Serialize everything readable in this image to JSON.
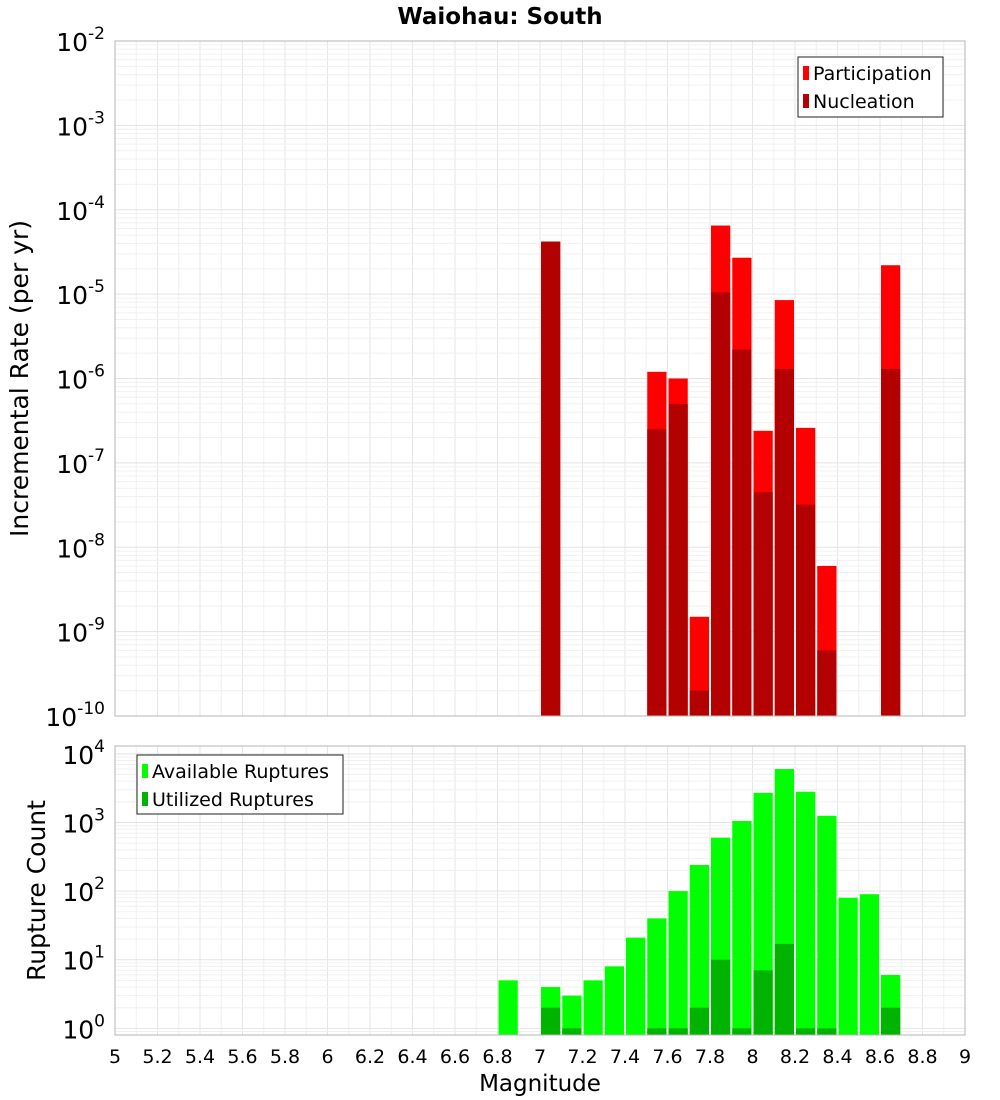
{
  "chart_data": [
    {
      "type": "bar",
      "title": "Waiohau: South",
      "xlabel": "",
      "ylabel": "Incremental Rate (per yr)",
      "yscale": "log",
      "xlim": [
        5,
        9
      ],
      "ylim": [
        1e-10,
        0.01
      ],
      "grid": true,
      "legend_position": "top-right",
      "bin_width": 0.1,
      "x": [
        7.05,
        7.55,
        7.65,
        7.75,
        7.85,
        7.95,
        8.05,
        8.15,
        8.25,
        8.35,
        8.65
      ],
      "series": [
        {
          "name": "Participation",
          "color": "#ff0000",
          "values": [
            4.2e-05,
            1.2e-06,
            1e-06,
            1.5e-09,
            6.5e-05,
            2.7e-05,
            2.4e-07,
            8.5e-06,
            2.6e-07,
            6e-09,
            2.2e-05
          ]
        },
        {
          "name": "Nucleation",
          "color": "#b30000",
          "values": [
            4.2e-05,
            2.5e-07,
            5e-07,
            2e-10,
            1.05e-05,
            2.2e-06,
            4.5e-08,
            1.3e-06,
            3.2e-08,
            6e-10,
            1.3e-06
          ]
        }
      ],
      "y_ticks": [
        {
          "base": "10",
          "exp": "-10",
          "value": 1e-10
        },
        {
          "base": "10",
          "exp": "-9",
          "value": 1e-09
        },
        {
          "base": "10",
          "exp": "-8",
          "value": 1e-08
        },
        {
          "base": "10",
          "exp": "-7",
          "value": 1e-07
        },
        {
          "base": "10",
          "exp": "-6",
          "value": 1e-06
        },
        {
          "base": "10",
          "exp": "-5",
          "value": 1e-05
        },
        {
          "base": "10",
          "exp": "-4",
          "value": 0.0001
        },
        {
          "base": "10",
          "exp": "-3",
          "value": 0.001
        },
        {
          "base": "10",
          "exp": "-2",
          "value": 0.01
        }
      ]
    },
    {
      "type": "bar",
      "title": "",
      "xlabel": "Magnitude",
      "ylabel": "Rupture Count",
      "yscale": "log",
      "xlim": [
        5,
        9
      ],
      "ylim": [
        0.8,
        13000
      ],
      "grid": true,
      "legend_position": "top-left",
      "bin_width": 0.1,
      "x": [
        6.85,
        7.05,
        7.15,
        7.25,
        7.35,
        7.45,
        7.55,
        7.65,
        7.75,
        7.85,
        7.95,
        8.05,
        8.15,
        8.25,
        8.35,
        8.45,
        8.55,
        8.65
      ],
      "series": [
        {
          "name": "Available Ruptures",
          "color": "#00ff00",
          "values": [
            5,
            4,
            3,
            5,
            8,
            21,
            40,
            100,
            240,
            600,
            1050,
            2700,
            6000,
            2800,
            1250,
            80,
            90,
            6
          ]
        },
        {
          "name": "Utilized Ruptures",
          "color": "#00b300",
          "values": [
            0,
            2,
            1,
            0,
            0,
            0,
            1,
            1,
            2,
            10,
            1,
            7,
            17,
            1,
            1,
            0,
            0,
            2
          ]
        }
      ],
      "x_ticks": [
        "5",
        "5.2",
        "5.4",
        "5.6",
        "5.8",
        "6",
        "6.2",
        "6.4",
        "6.6",
        "6.8",
        "7",
        "7.2",
        "7.4",
        "7.6",
        "7.8",
        "8",
        "8.2",
        "8.4",
        "8.6",
        "8.8",
        "9"
      ],
      "y_ticks": [
        {
          "base": "10",
          "exp": "0",
          "value": 1
        },
        {
          "base": "10",
          "exp": "1",
          "value": 10
        },
        {
          "base": "10",
          "exp": "2",
          "value": 100
        },
        {
          "base": "10",
          "exp": "3",
          "value": 1000
        },
        {
          "base": "10",
          "exp": "4",
          "value": 10000
        }
      ]
    }
  ]
}
